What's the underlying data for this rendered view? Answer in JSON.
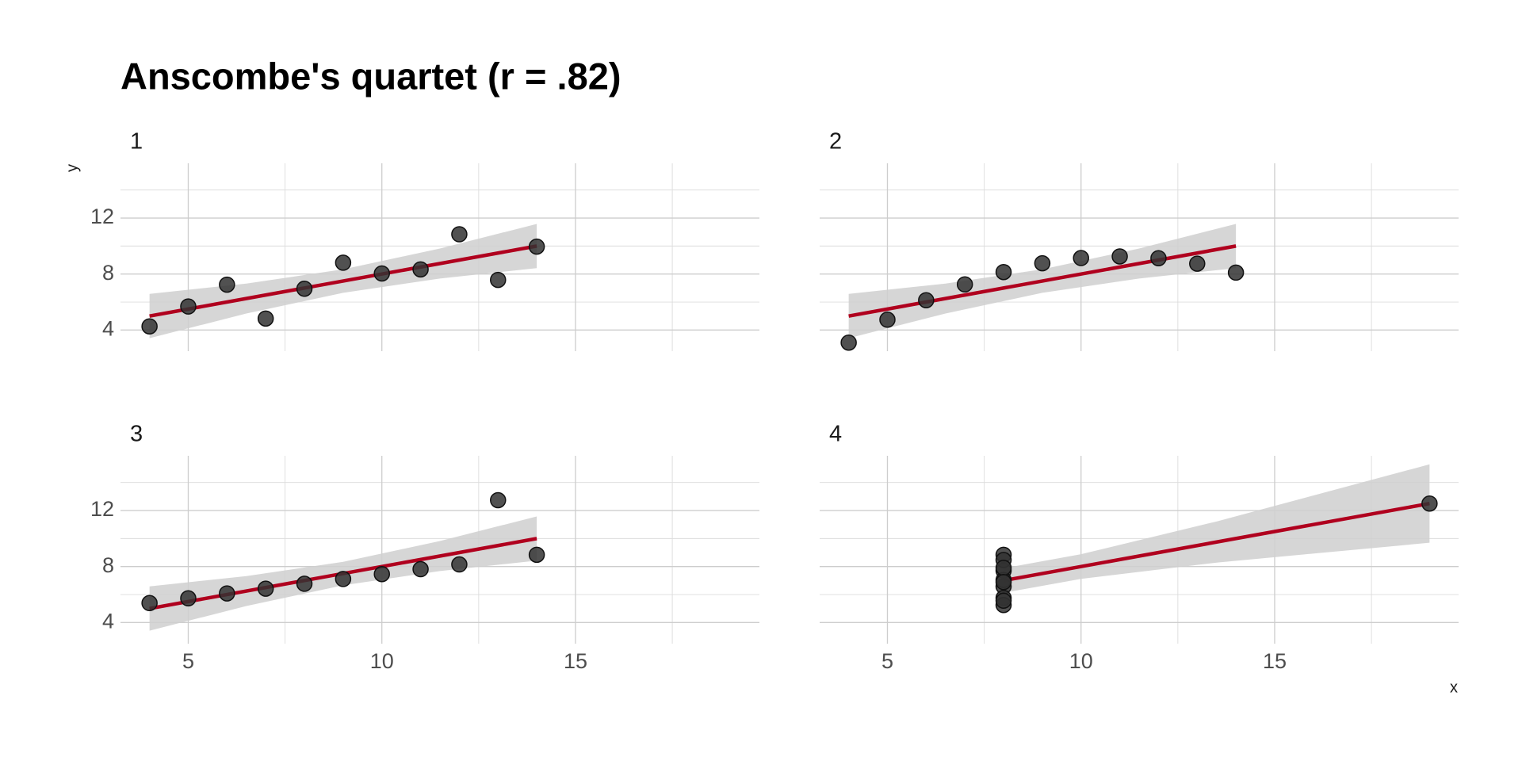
{
  "title": "Anscombe's quartet (r = .82)",
  "x_label": "x",
  "y_label": "y",
  "colors": {
    "points": "#333333",
    "fit": "#b0001e",
    "band": "#cfcfcf"
  },
  "chart_data": [
    {
      "type": "scatter",
      "title": "1",
      "x": [
        10,
        8,
        13,
        9,
        11,
        14,
        6,
        4,
        12,
        7,
        5
      ],
      "y": [
        8.04,
        6.95,
        7.58,
        8.81,
        8.33,
        9.96,
        7.24,
        4.26,
        10.84,
        4.82,
        5.68
      ],
      "fit": {
        "x": [
          4,
          14
        ],
        "y": [
          5,
          10
        ]
      },
      "band": {
        "x": [
          4,
          6.5,
          9,
          11.5,
          14
        ],
        "lower": [
          3.42,
          5.18,
          6.66,
          7.68,
          8.42
        ],
        "upper": [
          6.58,
          7.32,
          8.34,
          9.82,
          11.58
        ]
      },
      "xlim": [
        3.25,
        19.75
      ],
      "ylim": [
        2.49,
        15.91
      ],
      "xticks": [
        5,
        10,
        15
      ],
      "yticks": [
        4,
        8,
        12
      ],
      "xminor": [
        7.5,
        12.5,
        17.5
      ],
      "yminor": [
        6,
        10,
        14
      ]
    },
    {
      "type": "scatter",
      "title": "2",
      "x": [
        10,
        8,
        13,
        9,
        11,
        14,
        6,
        4,
        12,
        7,
        5
      ],
      "y": [
        9.14,
        8.14,
        8.74,
        8.77,
        9.26,
        8.1,
        6.13,
        3.1,
        9.13,
        7.26,
        4.74
      ],
      "fit": {
        "x": [
          4,
          14
        ],
        "y": [
          5,
          10
        ]
      },
      "band": {
        "x": [
          4,
          6.5,
          9,
          11.5,
          14
        ],
        "lower": [
          3.42,
          5.18,
          6.66,
          7.68,
          8.42
        ],
        "upper": [
          6.58,
          7.32,
          8.34,
          9.82,
          11.58
        ]
      },
      "xlim": [
        3.25,
        19.75
      ],
      "ylim": [
        2.49,
        15.91
      ],
      "xticks": [
        5,
        10,
        15
      ],
      "yticks": [
        4,
        8,
        12
      ],
      "xminor": [
        7.5,
        12.5,
        17.5
      ],
      "yminor": [
        6,
        10,
        14
      ]
    },
    {
      "type": "scatter",
      "title": "3",
      "x": [
        10,
        8,
        13,
        9,
        11,
        14,
        6,
        4,
        12,
        7,
        5
      ],
      "y": [
        7.46,
        6.77,
        12.74,
        7.11,
        7.81,
        8.84,
        6.08,
        5.39,
        8.15,
        6.42,
        5.73
      ],
      "fit": {
        "x": [
          4,
          14
        ],
        "y": [
          5,
          10
        ]
      },
      "band": {
        "x": [
          4,
          6.5,
          9,
          11.5,
          14
        ],
        "lower": [
          3.42,
          5.18,
          6.66,
          7.68,
          8.42
        ],
        "upper": [
          6.58,
          7.32,
          8.34,
          9.82,
          11.58
        ]
      },
      "xlim": [
        3.25,
        19.75
      ],
      "ylim": [
        2.49,
        15.91
      ],
      "xticks": [
        5,
        10,
        15
      ],
      "yticks": [
        4,
        8,
        12
      ],
      "xminor": [
        7.5,
        12.5,
        17.5
      ],
      "yminor": [
        6,
        10,
        14
      ]
    },
    {
      "type": "scatter",
      "title": "4",
      "x": [
        8,
        8,
        8,
        8,
        8,
        8,
        8,
        19,
        8,
        8,
        8
      ],
      "y": [
        6.58,
        5.76,
        7.71,
        8.84,
        8.47,
        7.04,
        5.25,
        12.5,
        5.56,
        7.91,
        6.89
      ],
      "fit": {
        "x": [
          8,
          19
        ],
        "y": [
          7,
          12.5
        ]
      },
      "band": {
        "x": [
          8,
          10,
          13.5,
          19
        ],
        "lower": [
          6.12,
          7.12,
          8.28,
          9.7
        ],
        "upper": [
          7.88,
          8.88,
          11.22,
          15.3
        ]
      },
      "xlim": [
        3.25,
        19.75
      ],
      "ylim": [
        2.49,
        15.91
      ],
      "xticks": [
        5,
        10,
        15
      ],
      "yticks": [
        4,
        8,
        12
      ],
      "xminor": [
        7.5,
        12.5,
        17.5
      ],
      "yminor": [
        6,
        10,
        14
      ]
    }
  ]
}
